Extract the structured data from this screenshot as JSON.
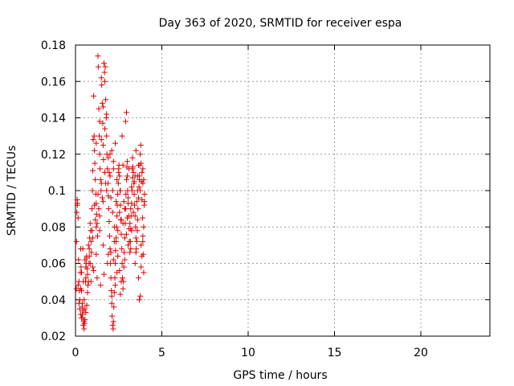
{
  "chart_data": {
    "type": "scatter",
    "title": "Day 363 of 2020, SRMTID for receiver espa",
    "xlabel": "GPS time / hours",
    "ylabel": "SRMTID / TECUs",
    "xlim": [
      0,
      24
    ],
    "ylim": [
      0.02,
      0.18
    ],
    "x_ticks": [
      0,
      5,
      10,
      15,
      20
    ],
    "x_tick_labels": [
      "0",
      "5",
      "10",
      "15",
      "20"
    ],
    "y_ticks": [
      0.02,
      0.04,
      0.06,
      0.08,
      0.1,
      0.12,
      0.14,
      0.16,
      0.18
    ],
    "y_tick_labels": [
      "0.02",
      "0.04",
      "0.06",
      "0.08",
      "0.1",
      "0.12",
      "0.14",
      "0.16",
      "0.18"
    ],
    "grid": true,
    "marker": "plus",
    "marker_color": "#e00000",
    "points": [
      [
        0.05,
        0.046
      ],
      [
        0.06,
        0.072
      ],
      [
        0.08,
        0.088
      ],
      [
        0.1,
        0.095
      ],
      [
        0.12,
        0.093
      ],
      [
        0.15,
        0.085
      ],
      [
        0.18,
        0.062
      ],
      [
        0.2,
        0.05
      ],
      [
        0.22,
        0.045
      ],
      [
        0.25,
        0.04
      ],
      [
        0.28,
        0.055
      ],
      [
        0.3,
        0.068
      ],
      [
        0.32,
        0.058
      ],
      [
        0.35,
        0.045
      ],
      [
        0.38,
        0.036
      ],
      [
        0.4,
        0.032
      ],
      [
        0.42,
        0.03
      ],
      [
        0.45,
        0.034
      ],
      [
        0.48,
        0.028
      ],
      [
        0.5,
        0.024
      ],
      [
        0.52,
        0.027
      ],
      [
        0.55,
        0.035
      ],
      [
        0.58,
        0.05
      ],
      [
        0.6,
        0.052
      ],
      [
        0.62,
        0.06
      ],
      [
        0.65,
        0.063
      ],
      [
        0.68,
        0.057
      ],
      [
        0.7,
        0.054
      ],
      [
        0.72,
        0.048
      ],
      [
        0.75,
        0.05
      ],
      [
        0.78,
        0.06
      ],
      [
        0.8,
        0.068
      ],
      [
        0.82,
        0.074
      ],
      [
        0.85,
        0.082
      ],
      [
        0.88,
        0.078
      ],
      [
        0.9,
        0.072
      ],
      [
        0.92,
        0.066
      ],
      [
        0.95,
        0.09
      ],
      [
        0.98,
        0.1
      ],
      [
        1.0,
        0.111
      ],
      [
        1.02,
        0.128
      ],
      [
        1.05,
        0.152
      ],
      [
        1.08,
        0.13
      ],
      [
        1.1,
        0.122
      ],
      [
        1.12,
        0.115
      ],
      [
        1.15,
        0.106
      ],
      [
        1.18,
        0.098
      ],
      [
        1.2,
        0.093
      ],
      [
        1.22,
        0.087
      ],
      [
        1.25,
        0.082
      ],
      [
        1.28,
        0.075
      ],
      [
        1.3,
        0.174
      ],
      [
        1.32,
        0.168
      ],
      [
        1.35,
        0.145
      ],
      [
        1.38,
        0.13
      ],
      [
        1.4,
        0.12
      ],
      [
        1.42,
        0.112
      ],
      [
        1.45,
        0.106
      ],
      [
        1.48,
        0.1
      ],
      [
        1.5,
        0.162
      ],
      [
        1.52,
        0.158
      ],
      [
        1.55,
        0.148
      ],
      [
        1.58,
        0.137
      ],
      [
        1.6,
        0.125
      ],
      [
        1.62,
        0.117
      ],
      [
        1.65,
        0.17
      ],
      [
        1.68,
        0.165
      ],
      [
        1.7,
        0.16
      ],
      [
        1.72,
        0.168
      ],
      [
        1.75,
        0.15
      ],
      [
        1.78,
        0.14
      ],
      [
        1.8,
        0.13
      ],
      [
        1.82,
        0.12
      ],
      [
        1.85,
        0.112
      ],
      [
        1.88,
        0.104
      ],
      [
        1.9,
        0.097
      ],
      [
        1.92,
        0.09
      ],
      [
        1.95,
        0.083
      ],
      [
        1.98,
        0.075
      ],
      [
        2.0,
        0.068
      ],
      [
        2.02,
        0.06
      ],
      [
        2.05,
        0.052
      ],
      [
        2.08,
        0.045
      ],
      [
        2.1,
        0.038
      ],
      [
        2.12,
        0.031
      ],
      [
        2.15,
        0.026
      ],
      [
        2.18,
        0.024
      ],
      [
        2.2,
        0.028
      ],
      [
        2.22,
        0.036
      ],
      [
        2.25,
        0.044
      ],
      [
        2.28,
        0.052
      ],
      [
        2.3,
        0.06
      ],
      [
        2.32,
        0.067
      ],
      [
        2.35,
        0.074
      ],
      [
        2.38,
        0.08
      ],
      [
        2.4,
        0.086
      ],
      [
        2.42,
        0.092
      ],
      [
        2.45,
        0.098
      ],
      [
        2.48,
        0.104
      ],
      [
        2.5,
        0.11
      ],
      [
        2.52,
        0.114
      ],
      [
        2.55,
        0.108
      ],
      [
        2.58,
        0.1
      ],
      [
        2.6,
        0.092
      ],
      [
        2.62,
        0.084
      ],
      [
        2.65,
        0.076
      ],
      [
        2.68,
        0.068
      ],
      [
        2.7,
        0.06
      ],
      [
        2.72,
        0.052
      ],
      [
        2.75,
        0.046
      ],
      [
        2.78,
        0.05
      ],
      [
        2.8,
        0.058
      ],
      [
        2.82,
        0.066
      ],
      [
        2.85,
        0.074
      ],
      [
        2.88,
        0.082
      ],
      [
        2.9,
        0.09
      ],
      [
        2.92,
        0.098
      ],
      [
        2.95,
        0.106
      ],
      [
        2.98,
        0.113
      ],
      [
        3.0,
        0.108
      ],
      [
        3.02,
        0.1
      ],
      [
        3.05,
        0.093
      ],
      [
        3.08,
        0.086
      ],
      [
        3.1,
        0.079
      ],
      [
        3.12,
        0.072
      ],
      [
        3.15,
        0.066
      ],
      [
        3.18,
        0.072
      ],
      [
        3.2,
        0.079
      ],
      [
        3.22,
        0.086
      ],
      [
        3.25,
        0.093
      ],
      [
        3.28,
        0.1
      ],
      [
        3.3,
        0.107
      ],
      [
        3.32,
        0.113
      ],
      [
        3.35,
        0.11
      ],
      [
        3.38,
        0.104
      ],
      [
        3.4,
        0.098
      ],
      [
        3.42,
        0.092
      ],
      [
        3.45,
        0.086
      ],
      [
        3.48,
        0.08
      ],
      [
        3.5,
        0.074
      ],
      [
        3.52,
        0.068
      ],
      [
        3.55,
        0.072
      ],
      [
        3.58,
        0.078
      ],
      [
        3.6,
        0.084
      ],
      [
        3.62,
        0.09
      ],
      [
        3.65,
        0.096
      ],
      [
        3.68,
        0.102
      ],
      [
        3.7,
        0.108
      ],
      [
        3.72,
        0.114
      ],
      [
        3.75,
        0.12
      ],
      [
        3.78,
        0.125
      ],
      [
        3.8,
        0.115
      ],
      [
        3.82,
        0.105
      ],
      [
        3.85,
        0.095
      ],
      [
        3.88,
        0.085
      ],
      [
        3.9,
        0.075
      ],
      [
        3.92,
        0.065
      ],
      [
        3.95,
        0.055
      ],
      [
        3.98,
        0.092
      ],
      [
        4.0,
        0.098
      ],
      [
        2.1,
        0.042
      ],
      [
        2.3,
        0.048
      ],
      [
        2.6,
        0.043
      ],
      [
        2.4,
        0.055
      ],
      [
        2.2,
        0.062
      ],
      [
        1.9,
        0.065
      ],
      [
        1.6,
        0.07
      ],
      [
        1.4,
        0.078
      ],
      [
        1.2,
        0.065
      ],
      [
        1.0,
        0.058
      ],
      [
        0.9,
        0.05
      ],
      [
        0.7,
        0.044
      ],
      [
        0.5,
        0.04
      ],
      [
        0.4,
        0.038
      ],
      [
        0.3,
        0.046
      ],
      [
        1.1,
        0.092
      ],
      [
        1.3,
        0.098
      ],
      [
        1.5,
        0.104
      ],
      [
        1.7,
        0.11
      ],
      [
        1.9,
        0.118
      ],
      [
        2.1,
        0.122
      ],
      [
        2.3,
        0.126
      ],
      [
        2.7,
        0.13
      ],
      [
        2.9,
        0.138
      ],
      [
        2.95,
        0.143
      ],
      [
        3.1,
        0.112
      ],
      [
        3.3,
        0.118
      ],
      [
        3.5,
        0.122
      ],
      [
        3.7,
        0.106
      ],
      [
        3.9,
        0.112
      ],
      [
        2.05,
        0.096
      ],
      [
        2.15,
        0.088
      ],
      [
        2.25,
        0.08
      ],
      [
        2.35,
        0.072
      ],
      [
        2.45,
        0.064
      ],
      [
        2.55,
        0.056
      ],
      [
        2.65,
        0.05
      ],
      [
        2.85,
        0.062
      ],
      [
        3.05,
        0.07
      ],
      [
        3.25,
        0.078
      ],
      [
        3.45,
        0.06
      ],
      [
        3.65,
        0.052
      ],
      [
        3.85,
        0.064
      ],
      [
        3.75,
        0.042
      ],
      [
        3.7,
        0.04
      ],
      [
        3.8,
        0.058
      ],
      [
        3.6,
        0.1
      ],
      [
        3.4,
        0.105
      ],
      [
        3.2,
        0.09
      ],
      [
        3.0,
        0.085
      ],
      [
        2.8,
        0.094
      ],
      [
        2.6,
        0.1
      ],
      [
        2.4,
        0.106
      ],
      [
        2.2,
        0.112
      ],
      [
        2.0,
        0.108
      ],
      [
        1.8,
        0.1
      ],
      [
        1.6,
        0.094
      ],
      [
        1.4,
        0.086
      ],
      [
        1.2,
        0.08
      ],
      [
        1.0,
        0.074
      ],
      [
        0.8,
        0.064
      ],
      [
        0.6,
        0.058
      ],
      [
        0.45,
        0.05
      ],
      [
        0.35,
        0.055
      ],
      [
        0.55,
        0.062
      ],
      [
        0.75,
        0.07
      ],
      [
        0.95,
        0.078
      ],
      [
        1.15,
        0.084
      ],
      [
        1.35,
        0.09
      ],
      [
        1.55,
        0.096
      ],
      [
        1.75,
        0.104
      ],
      [
        1.95,
        0.11
      ],
      [
        2.15,
        0.1
      ],
      [
        2.35,
        0.094
      ],
      [
        2.55,
        0.088
      ],
      [
        2.75,
        0.082
      ],
      [
        2.95,
        0.076
      ],
      [
        3.15,
        0.082
      ],
      [
        3.35,
        0.088
      ],
      [
        3.55,
        0.094
      ],
      [
        3.75,
        0.1
      ],
      [
        3.95,
        0.106
      ],
      [
        3.85,
        0.11
      ],
      [
        3.65,
        0.114
      ],
      [
        3.45,
        0.108
      ],
      [
        3.25,
        0.102
      ],
      [
        3.05,
        0.096
      ],
      [
        2.85,
        0.09
      ],
      [
        2.65,
        0.084
      ],
      [
        2.45,
        0.078
      ],
      [
        2.25,
        0.072
      ],
      [
        2.05,
        0.066
      ],
      [
        1.85,
        0.06
      ],
      [
        1.65,
        0.054
      ],
      [
        1.45,
        0.048
      ],
      [
        1.25,
        0.052
      ],
      [
        1.05,
        0.056
      ],
      [
        0.85,
        0.06
      ],
      [
        0.65,
        0.064
      ],
      [
        0.42,
        0.068
      ],
      [
        1.5,
        0.128
      ],
      [
        1.7,
        0.134
      ],
      [
        1.8,
        0.142
      ],
      [
        1.6,
        0.146
      ],
      [
        1.4,
        0.138
      ],
      [
        1.2,
        0.126
      ],
      [
        2.0,
        0.12
      ],
      [
        2.2,
        0.116
      ],
      [
        2.5,
        0.112
      ],
      [
        2.75,
        0.114
      ],
      [
        3.0,
        0.116
      ],
      [
        3.3,
        0.112
      ],
      [
        3.6,
        0.108
      ],
      [
        3.9,
        0.104
      ],
      [
        4.0,
        0.094
      ],
      [
        3.95,
        0.08
      ],
      [
        3.9,
        0.072
      ],
      [
        3.8,
        0.07
      ],
      [
        3.5,
        0.066
      ],
      [
        3.2,
        0.068
      ],
      [
        0.1,
        0.092
      ],
      [
        0.15,
        0.048
      ],
      [
        0.2,
        0.038
      ],
      [
        0.25,
        0.035
      ],
      [
        0.3,
        0.032
      ],
      [
        0.35,
        0.03
      ],
      [
        0.45,
        0.026
      ],
      [
        0.55,
        0.029
      ],
      [
        0.6,
        0.033
      ],
      [
        0.65,
        0.037
      ]
    ]
  }
}
